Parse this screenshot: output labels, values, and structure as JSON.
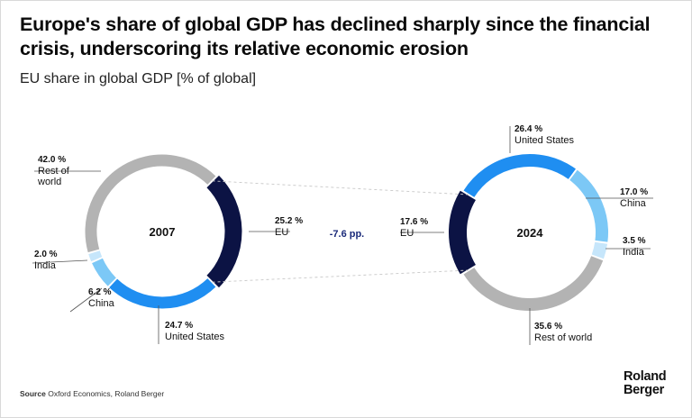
{
  "title": "Europe's share of global GDP has declined sharply since the financial crisis, underscoring its relative economic erosion",
  "subtitle": "EU share in global GDP [% of global]",
  "source_label": "Source",
  "source_text": "Oxford Economics, Roland Berger",
  "logo": {
    "line1": "Roland",
    "line2": "Berger"
  },
  "delta_label": "-7.6 pp.",
  "colors": {
    "EU": "#0c1344",
    "United States": "#1f8ef1",
    "China": "#7cc8f6",
    "India": "#c6e6fb",
    "Rest of world": "#b3b3b3",
    "connector": "#c8c8c8"
  },
  "chart_data": [
    {
      "type": "pie",
      "year": "2007",
      "slices": [
        {
          "name": "EU",
          "value": 25.2,
          "value_label": "25.2 %"
        },
        {
          "name": "United States",
          "value": 24.7,
          "value_label": "24.7 %"
        },
        {
          "name": "China",
          "value": 6.2,
          "value_label": "6.2 %"
        },
        {
          "name": "India",
          "value": 2.0,
          "value_label": "2.0 %"
        },
        {
          "name": "Rest of world",
          "value": 42.0,
          "value_label": "42.0 %",
          "label_lines": [
            "Rest of",
            "world"
          ]
        }
      ]
    },
    {
      "type": "pie",
      "year": "2024",
      "slices": [
        {
          "name": "EU",
          "value": 17.6,
          "value_label": "17.6 %"
        },
        {
          "name": "United States",
          "value": 26.4,
          "value_label": "26.4 %"
        },
        {
          "name": "China",
          "value": 17.0,
          "value_label": "17.0 %"
        },
        {
          "name": "India",
          "value": 3.5,
          "value_label": "3.5 %"
        },
        {
          "name": "Rest of world",
          "value": 35.6,
          "value_label": "35.6 %",
          "label_lines": [
            "Rest of world"
          ]
        }
      ]
    }
  ]
}
